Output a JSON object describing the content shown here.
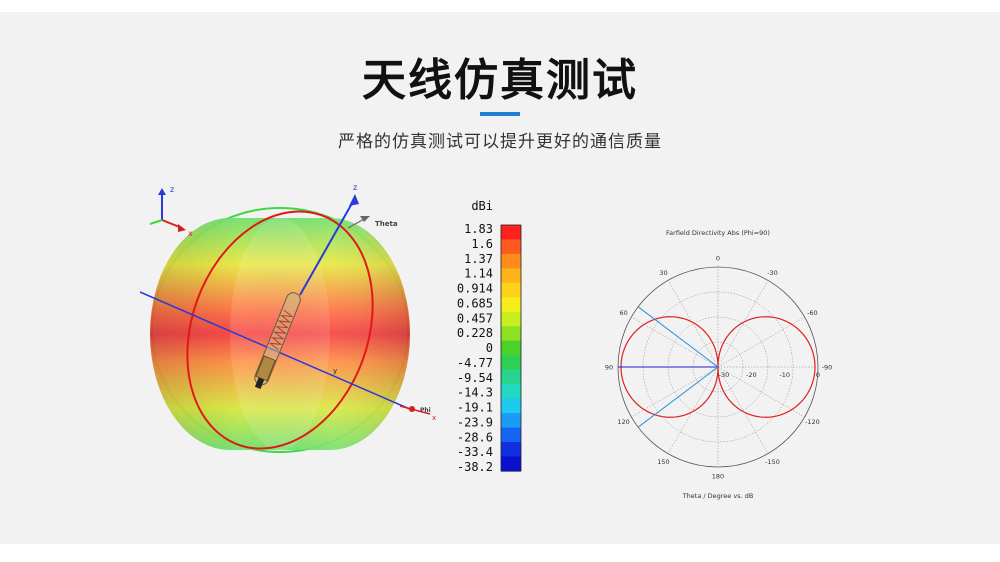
{
  "header": {
    "title": "天线仿真测试",
    "subtitle": "严格的仿真测试可以提升更好的通信质量"
  },
  "sim3d": {
    "axis_z": "z",
    "axis_x": "x",
    "theta_label": "Theta",
    "phi_label": "Phi",
    "axis_y_tag": "y"
  },
  "colorbar": {
    "unit": "dBi",
    "ticks": [
      "1.83",
      "1.6",
      "1.37",
      "1.14",
      "0.914",
      "0.685",
      "0.457",
      "0.228",
      "0",
      "-4.77",
      "-9.54",
      "-14.3",
      "-19.1",
      "-23.9",
      "-28.6",
      "-33.4",
      "-38.2"
    ],
    "colors": [
      "#ff2020",
      "#ff5a1e",
      "#ff8c1a",
      "#ffb31a",
      "#ffd21a",
      "#f4ef1c",
      "#c8ee1e",
      "#8ee023",
      "#4cd12a",
      "#2fcf57",
      "#26d48f",
      "#22d8c2",
      "#1fcaf0",
      "#1a9cf6",
      "#1565f2",
      "#1030e0",
      "#0a0fd0"
    ]
  },
  "polar": {
    "title": "Farfield Directivity Abs (Phi=90)",
    "xlabel": "Theta / Degree vs. dB",
    "angle_labels": [
      {
        "t": "0",
        "a": 0
      },
      {
        "t": "30",
        "a": -30
      },
      {
        "t": "-30",
        "a": 30
      },
      {
        "t": "60",
        "a": -60
      },
      {
        "t": "-60",
        "a": 60
      },
      {
        "t": "90",
        "a": -90
      },
      {
        "t": "-90",
        "a": 90
      },
      {
        "t": "120",
        "a": -120
      },
      {
        "t": "-120",
        "a": 120
      },
      {
        "t": "150",
        "a": -150
      },
      {
        "t": "-150",
        "a": 150
      },
      {
        "t": "180",
        "a": 180
      }
    ],
    "radial_labels": [
      "-30",
      "-20",
      "-10",
      "0"
    ],
    "colors": {
      "pattern": "#e02020",
      "marker": "#2a8fe0",
      "axis": "#2020d0",
      "grid": "#888888"
    }
  }
}
